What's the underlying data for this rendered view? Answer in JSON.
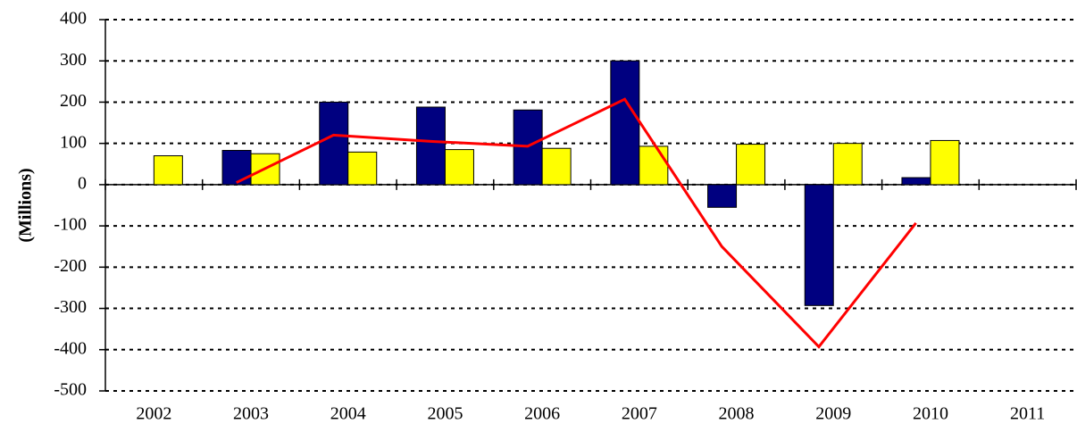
{
  "chart_data": {
    "type": "bar",
    "y_label": "(Millions)",
    "categories": [
      "2002",
      "2003",
      "2004",
      "2005",
      "2006",
      "2007",
      "2008",
      "2009",
      "2010",
      "2011"
    ],
    "series": [
      {
        "type": "bar",
        "color": "#000080",
        "values": [
          null,
          83,
          200,
          188,
          181,
          300,
          -55,
          -293,
          17,
          null
        ]
      },
      {
        "type": "bar",
        "color": "#ffff00",
        "values": [
          70,
          75,
          79,
          85,
          88,
          93,
          98,
          100,
          107,
          null
        ]
      },
      {
        "type": "line",
        "color": "#ff0000",
        "values": [
          null,
          5,
          120,
          105,
          93,
          207,
          -150,
          -393,
          -93,
          null
        ]
      }
    ],
    "ylim": [
      -500,
      400
    ],
    "yticks": [
      -500,
      -400,
      -300,
      -200,
      -100,
      0,
      100,
      200,
      300,
      400
    ],
    "grid": true
  }
}
